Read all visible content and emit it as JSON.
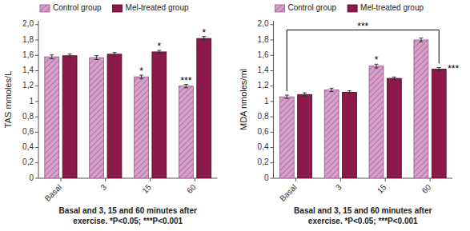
{
  "chart_data": [
    {
      "type": "bar",
      "ylabel": "TAS mmoles/L",
      "xlabel": [
        "Basal and 3, 15 and 60 minutes after",
        "exercise. *P<0.05; ***P<0.001"
      ],
      "categories": [
        "Basal",
        "3",
        "15",
        "60"
      ],
      "series": [
        {
          "name": "Control group",
          "color": "#D4A0C8",
          "values": [
            1.58,
            1.57,
            1.32,
            1.2
          ],
          "errors": [
            0.025,
            0.025,
            0.022,
            0.022
          ]
        },
        {
          "name": "Mel-treated group",
          "color": "#8B1A4A",
          "values": [
            1.595,
            1.615,
            1.645,
            1.82
          ],
          "errors": [
            0.022,
            0.022,
            0.02,
            0.025
          ]
        }
      ],
      "ylim": [
        0,
        2.05
      ],
      "yticks": [
        0,
        {
          "value": 0.2,
          "label": "0,2"
        },
        {
          "value": 0.4,
          "label": "0,4"
        },
        {
          "value": 0.6,
          "label": "0,6"
        },
        {
          "value": 0.8,
          "label": "0,8"
        },
        1,
        {
          "value": 1.2,
          "label": "1,2"
        },
        {
          "value": 1.4,
          "label": "1,4"
        },
        {
          "value": 1.6,
          "label": "1,6"
        },
        {
          "value": 1.8,
          "label": "1,8"
        },
        {
          "value": 2.0,
          "label": "2,0"
        }
      ],
      "annotations": [
        {
          "text": "*",
          "series": 0,
          "category": "15"
        },
        {
          "text": "*",
          "series": 1,
          "category": "15"
        },
        {
          "text": "***",
          "series": 0,
          "category": "60"
        },
        {
          "text": "*",
          "series": 1,
          "category": "60"
        }
      ],
      "grid": false,
      "legend": "top"
    },
    {
      "type": "bar",
      "ylabel": "MDA nmoles/ml",
      "xlabel": [
        "Basal and 3, 15 and 60 minutes after",
        "exercise.  *P<0.05; ***P<0.001"
      ],
      "categories": [
        "Basal",
        "3",
        "15",
        "60"
      ],
      "series": [
        {
          "name": "Control group",
          "color": "#D4A0C8",
          "values": [
            1.06,
            1.15,
            1.46,
            1.8
          ],
          "errors": [
            0.022,
            0.022,
            0.025,
            0.025
          ]
        },
        {
          "name": "Mel-treated group",
          "color": "#8B1A4A",
          "values": [
            1.09,
            1.12,
            1.3,
            1.42
          ],
          "errors": [
            0.022,
            0.018,
            0.018,
            0.022
          ]
        }
      ],
      "ylim": [
        0,
        2.05
      ],
      "yticks": [
        0,
        {
          "value": 0.2,
          "label": "0,2"
        },
        {
          "value": 0.4,
          "label": "0,4"
        },
        {
          "value": 0.6,
          "label": "0,6"
        },
        {
          "value": 0.8,
          "label": "0,8"
        },
        1,
        {
          "value": 1.2,
          "label": "1,2"
        },
        {
          "value": 1.4,
          "label": "1,4"
        },
        {
          "value": 1.6,
          "label": "1,6"
        },
        {
          "value": 1.8,
          "label": "1,8"
        },
        {
          "value": 2.0,
          "label": "2,0"
        }
      ],
      "annotations": [
        {
          "text": "*",
          "series": 0,
          "category": "15"
        },
        {
          "text": "***",
          "series": 1,
          "category": "60"
        }
      ],
      "bracket": {
        "text": "***",
        "y": 1.93,
        "from": {
          "series": 0,
          "category": "Basal"
        },
        "to": {
          "series": 1,
          "category": "60"
        }
      },
      "grid": false,
      "legend": "top"
    }
  ]
}
